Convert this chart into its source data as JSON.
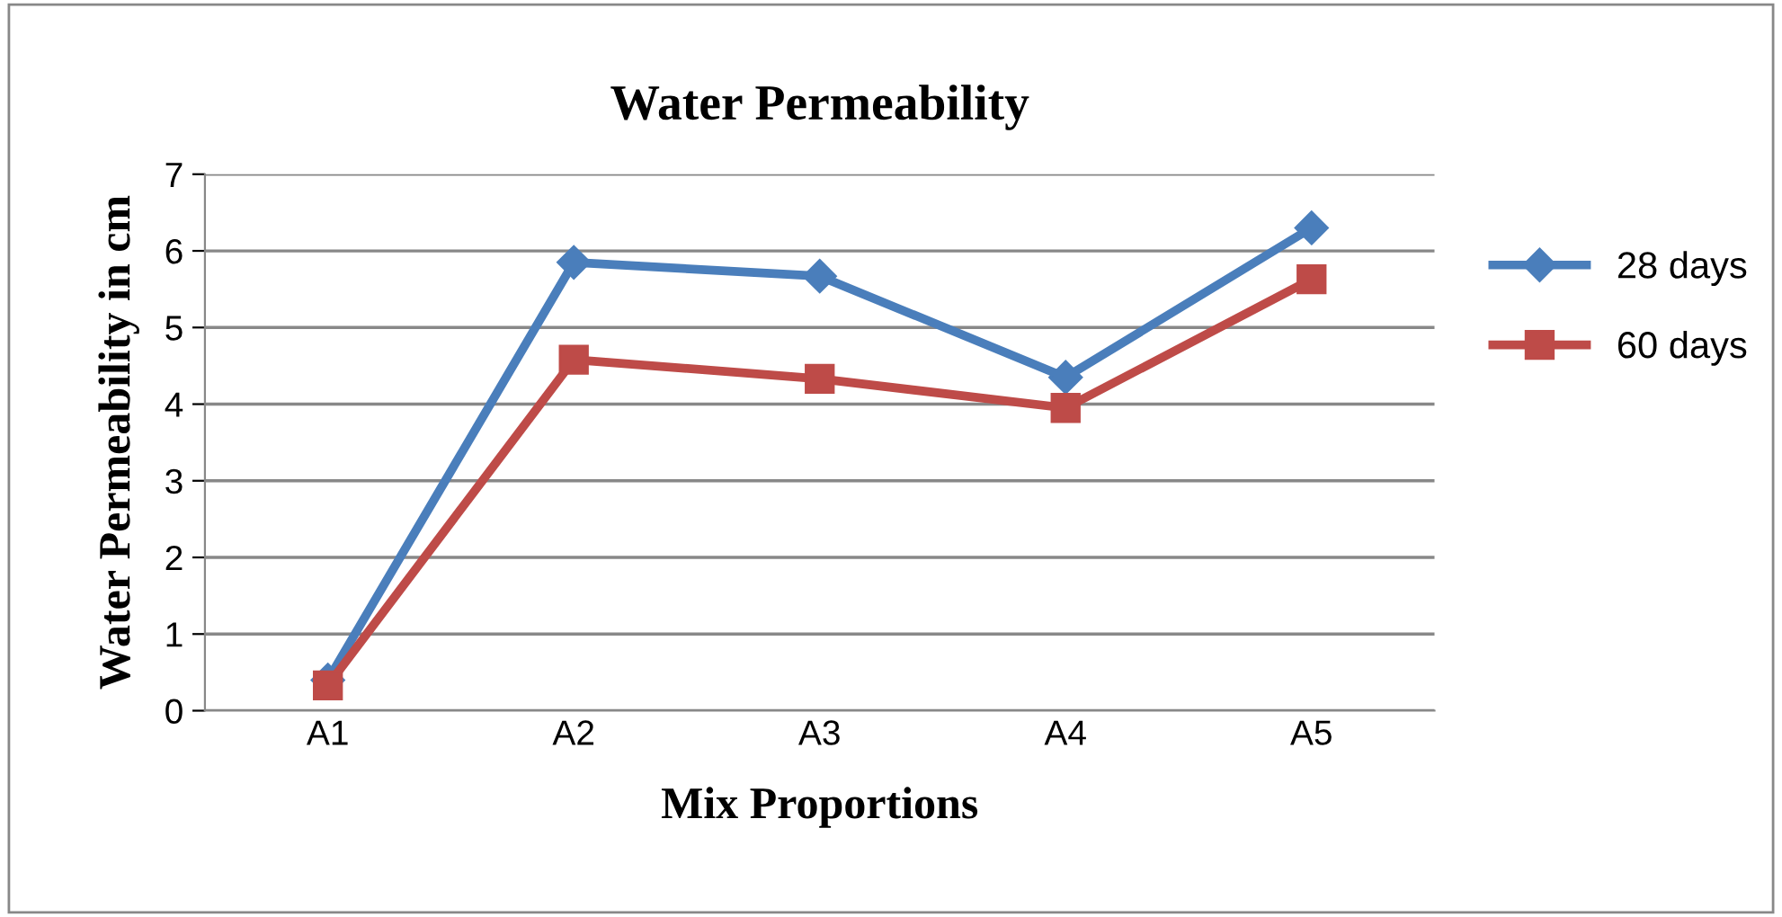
{
  "chart_data": {
    "type": "line",
    "title": "Water Permeability",
    "xlabel": "Mix Proportions",
    "ylabel": "Water Permeability in cm",
    "categories": [
      "A1",
      "A2",
      "A3",
      "A4",
      "A5"
    ],
    "series": [
      {
        "name": "28 days",
        "color": "#4a7ebb",
        "marker": "diamond",
        "values": [
          0.4,
          5.85,
          5.67,
          4.35,
          6.3
        ]
      },
      {
        "name": "60 days",
        "color": "#be4b48",
        "marker": "square",
        "values": [
          0.33,
          4.58,
          4.33,
          3.95,
          5.63
        ]
      }
    ],
    "ylim": [
      0,
      7
    ],
    "yticks": [
      0,
      1,
      2,
      3,
      4,
      5,
      6,
      7
    ],
    "grid": "y",
    "legend": "right",
    "line_style": "solid"
  }
}
